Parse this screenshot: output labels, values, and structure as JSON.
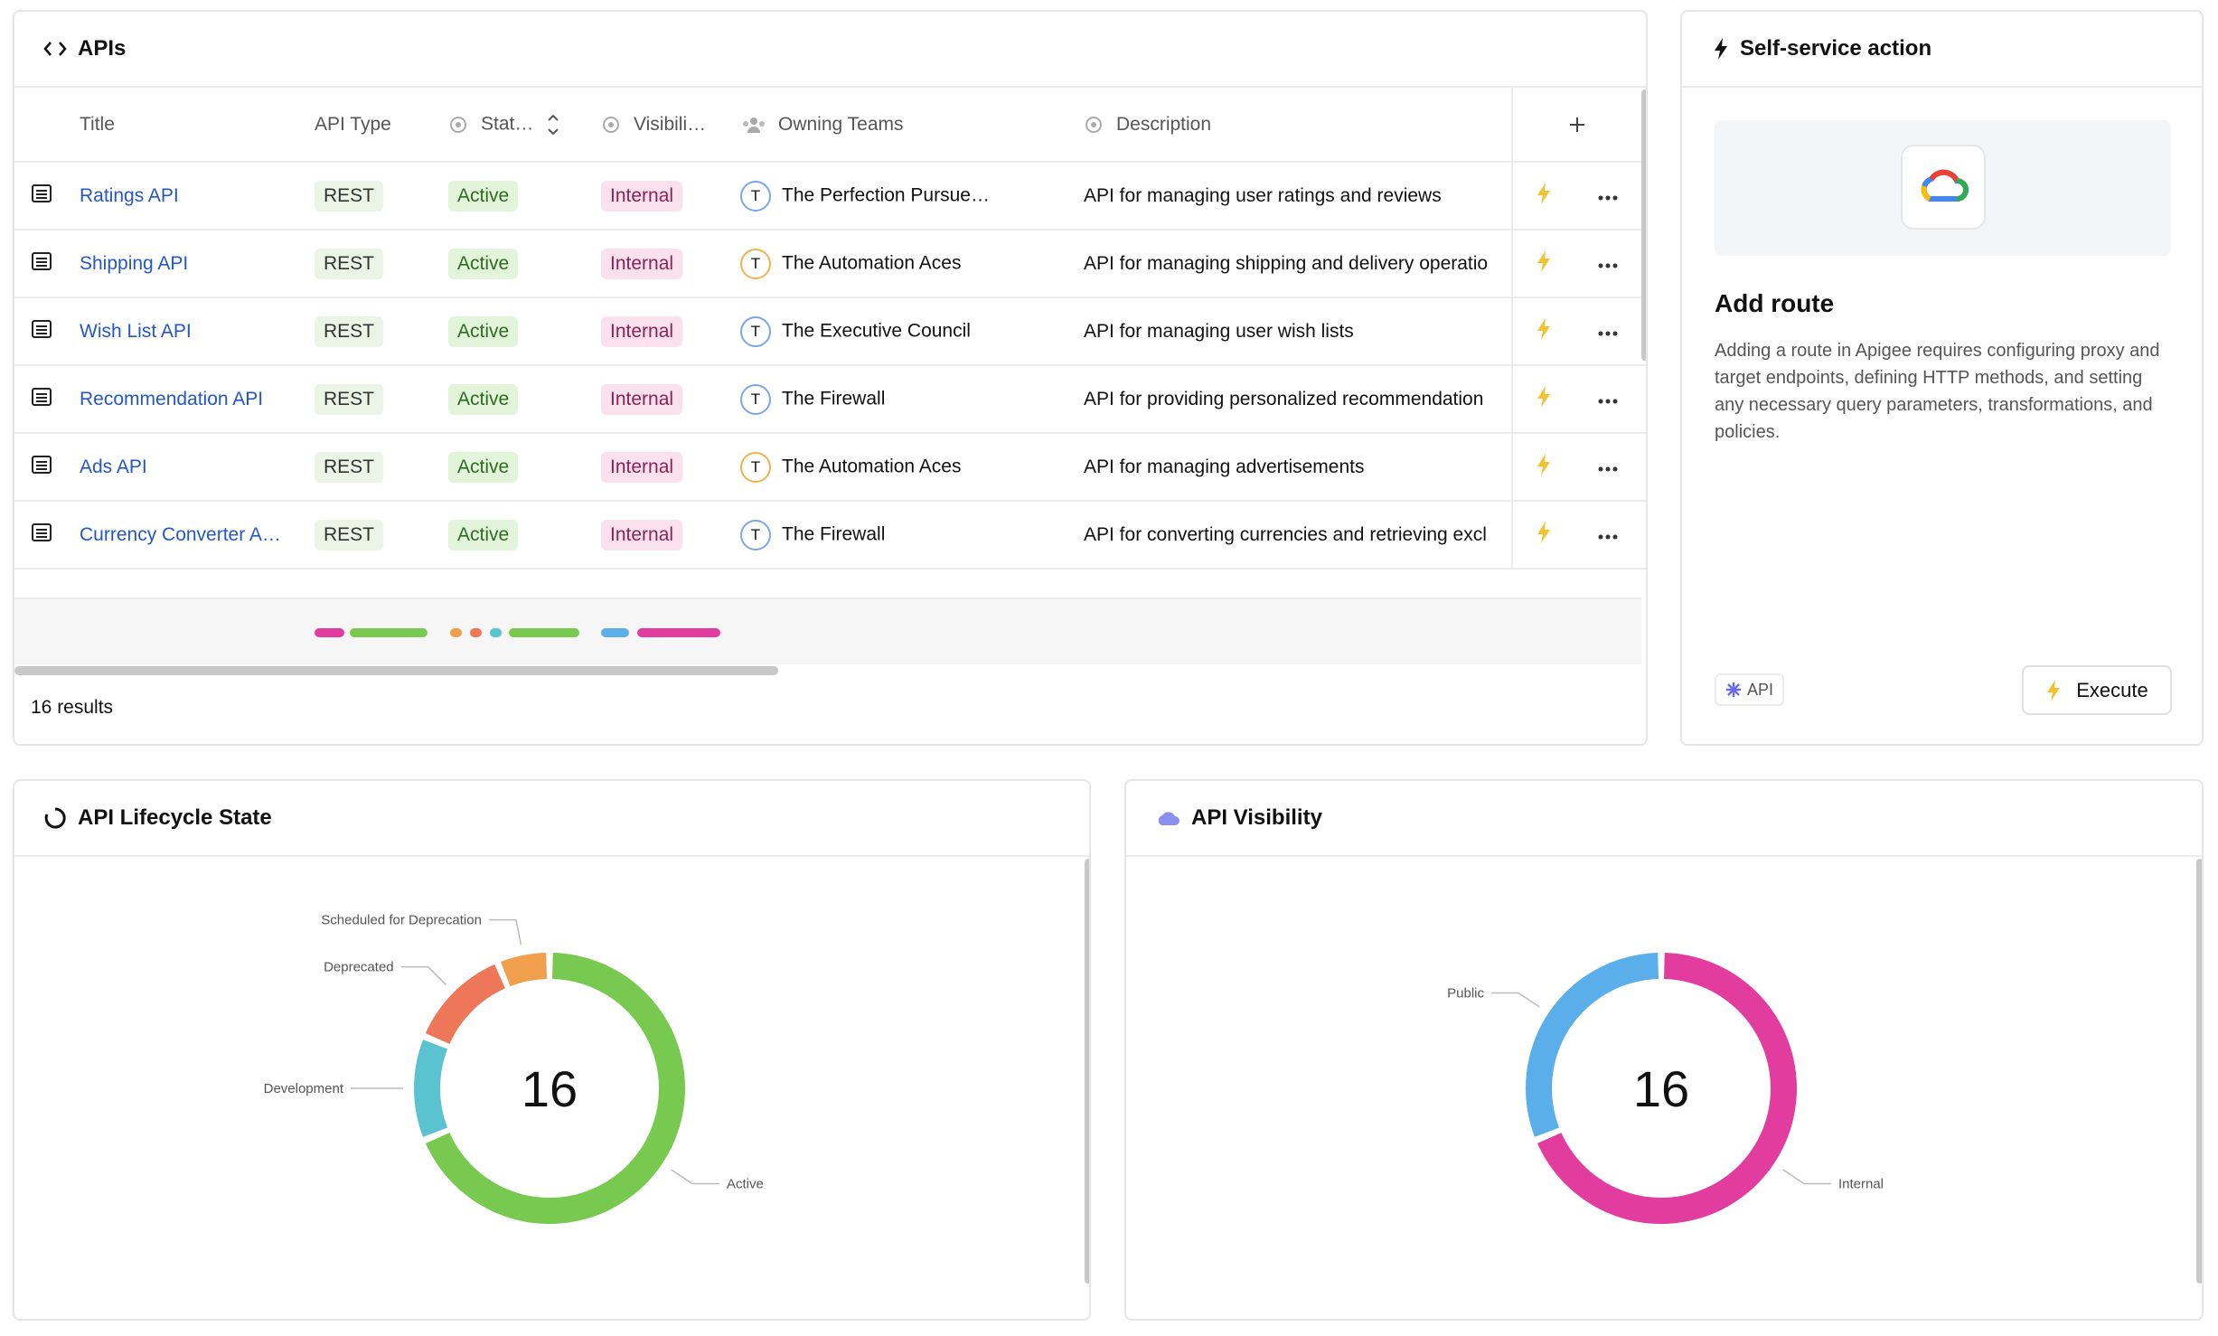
{
  "apis_panel": {
    "title": "APIs",
    "columns": [
      "Title",
      "API Type",
      "Stat…",
      "Visibili…",
      "Owning Teams",
      "Description"
    ],
    "rows": [
      {
        "title": "Ratings API",
        "api_type": "REST",
        "status": "Active",
        "visibility": "Internal",
        "team_initial": "T",
        "team": "The Perfection Pursue…",
        "description": "API for managing user ratings and reviews"
      },
      {
        "title": "Shipping API",
        "api_type": "REST",
        "status": "Active",
        "visibility": "Internal",
        "team_initial": "T",
        "team": "The Automation Aces",
        "description": "API for managing shipping and delivery operatio"
      },
      {
        "title": "Wish List API",
        "api_type": "REST",
        "status": "Active",
        "visibility": "Internal",
        "team_initial": "T",
        "team": "The Executive Council",
        "description": "API for managing user wish lists"
      },
      {
        "title": "Recommendation API",
        "api_type": "REST",
        "status": "Active",
        "visibility": "Internal",
        "team_initial": "T",
        "team": "The Firewall",
        "description": "API for providing personalized recommendation"
      },
      {
        "title": "Ads API",
        "api_type": "REST",
        "status": "Active",
        "visibility": "Internal",
        "team_initial": "T",
        "team": "The Automation Aces",
        "description": "API for managing advertisements"
      },
      {
        "title": "Currency Converter A…",
        "api_type": "REST",
        "status": "Active",
        "visibility": "Internal",
        "team_initial": "T",
        "team": "The Firewall",
        "description": "API for converting currencies and retrieving excl"
      }
    ],
    "results": "16 results"
  },
  "action_panel": {
    "title": "Self-service action",
    "action_title": "Add route",
    "description": "Adding a route in Apigee requires configuring proxy and target endpoints, defining HTTP methods, and setting any necessary query parameters, transformations, and policies.",
    "tag": "API",
    "button": "Execute"
  },
  "chart_data": [
    {
      "type": "donut",
      "title": "API Lifecycle State",
      "categories": [
        "Active",
        "Development",
        "Deprecated",
        "Scheduled for Deprecation"
      ],
      "values": [
        11,
        2,
        2,
        1
      ],
      "colors": [
        "#78c94f",
        "#5bc2d0",
        "#ee7659",
        "#f0a04c"
      ],
      "center_label": 16
    },
    {
      "type": "donut",
      "title": "API Visibility",
      "categories": [
        "Internal",
        "Public"
      ],
      "values": [
        11,
        5
      ],
      "colors": [
        "#e23c9f",
        "#5aaeea"
      ],
      "center_label": 16
    }
  ]
}
